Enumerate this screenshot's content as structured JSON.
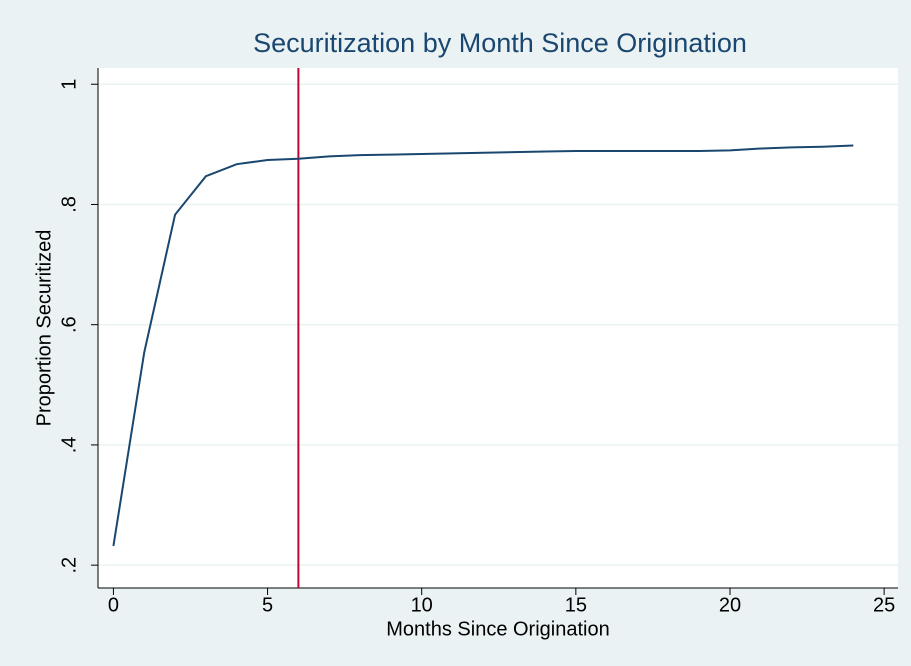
{
  "chart_data": {
    "type": "line",
    "title": "Securitization by Month Since Origination",
    "x_label": "Months Since Origination",
    "y_label": "Proportion Securitized",
    "x": [
      0,
      1,
      2,
      3,
      4,
      5,
      6,
      7,
      8,
      9,
      10,
      11,
      12,
      13,
      14,
      15,
      16,
      17,
      18,
      19,
      20,
      21,
      22,
      23,
      24
    ],
    "values": [
      0.232,
      0.554,
      0.783,
      0.847,
      0.867,
      0.874,
      0.876,
      0.88,
      0.882,
      0.883,
      0.884,
      0.885,
      0.886,
      0.887,
      0.888,
      0.889,
      0.889,
      0.889,
      0.889,
      0.889,
      0.89,
      0.893,
      0.895,
      0.896,
      0.898
    ],
    "color": "#1a476f",
    "xline": 6,
    "xline_color": "#c10534",
    "xlim": [
      -0.5,
      25.45
    ],
    "ylim": [
      0.162,
      1.027
    ],
    "xticks": [
      0,
      5,
      10,
      15,
      20,
      25
    ],
    "yticks": [
      {
        "value": 0.2,
        "label": ".2"
      },
      {
        "value": 0.4,
        "label": ".4"
      },
      {
        "value": 0.6,
        "label": ".6"
      },
      {
        "value": 0.8,
        "label": ".8"
      },
      1
    ],
    "grid": true
  }
}
